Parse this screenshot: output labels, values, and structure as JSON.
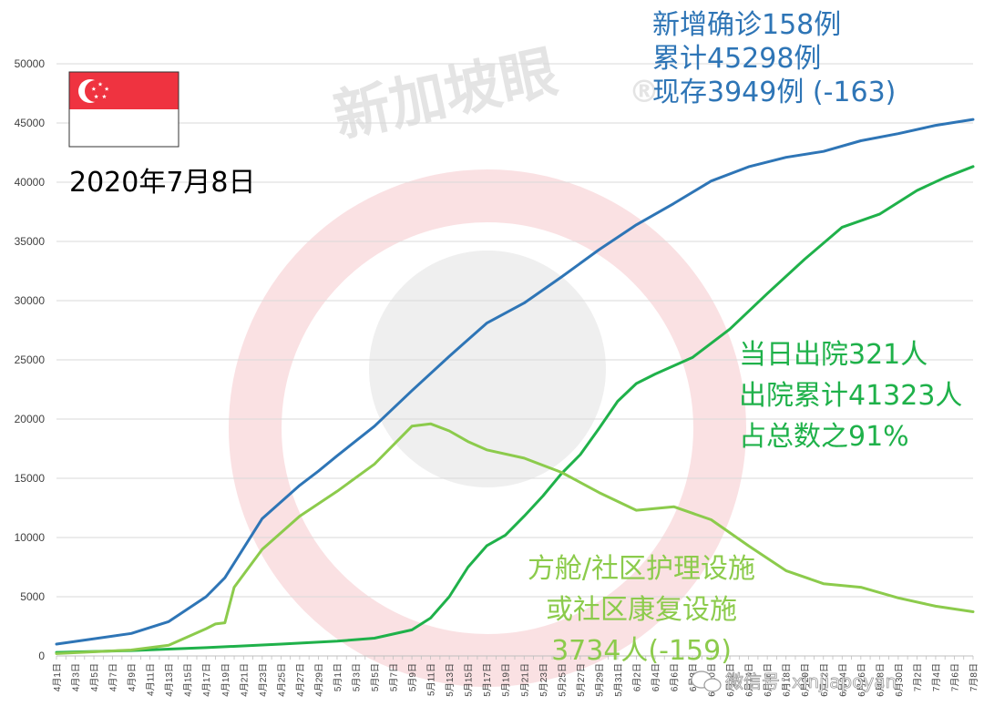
{
  "colors": {
    "confirmed": "#2E75B6",
    "discharged": "#1FB14A",
    "facilities": "#8CCB4C",
    "flag_red": "#EF3340",
    "flag_white": "#FFFFFF",
    "watermark": "#F6C9CC"
  },
  "date_label": "2020年7月8日",
  "annotations": {
    "confirmed": [
      "新增确诊158例",
      "累计45298例",
      "现存3949例 (-163)"
    ],
    "discharged": [
      "当日出院321人",
      "出院累计41323人",
      "占总数之91%"
    ],
    "facilities": [
      "方舱/社区护理设施",
      "或社区康复设施",
      "3734人(-159)"
    ]
  },
  "watermark": {
    "text": "新加坡眼",
    "mark": "®"
  },
  "source_badge": {
    "text": "微信号: xinjiapoyan"
  },
  "chart_data": {
    "type": "line",
    "title": "",
    "xlabel": "",
    "ylabel": "",
    "ylim": [
      0,
      50000
    ],
    "yticks": [
      0,
      5000,
      10000,
      15000,
      20000,
      25000,
      30000,
      35000,
      40000,
      45000,
      50000
    ],
    "x_range": [
      "2020-04-01",
      "2020-07-08"
    ],
    "xtick_labels": [
      "4月1日",
      "4月3日",
      "4月5日",
      "4月7日",
      "4月9日",
      "4月11日",
      "4月13日",
      "4月15日",
      "4月17日",
      "4月19日",
      "4月21日",
      "4月23日",
      "4月25日",
      "4月27日",
      "4月29日",
      "5月1日",
      "5月3日",
      "5月5日",
      "5月7日",
      "5月9日",
      "5月11日",
      "5月13日",
      "5月15日",
      "5月17日",
      "5月19日",
      "5月21日",
      "5月23日",
      "5月25日",
      "5月27日",
      "5月29日",
      "5月31日",
      "6月2日",
      "6月4日",
      "6月6日",
      "6月8日",
      "6月10日",
      "6月12日",
      "6月14日",
      "6月16日",
      "6月18日",
      "6月20日",
      "6月22日",
      "6月24日",
      "6月26日",
      "6月28日",
      "6月30日",
      "7月2日",
      "7月4日",
      "7月6日",
      "7月8日"
    ],
    "grid": true,
    "legend": "none",
    "series": [
      {
        "key": "confirmed",
        "x": [
          "2020-04-01",
          "2020-04-09",
          "2020-04-13",
          "2020-04-17",
          "2020-04-19",
          "2020-04-23",
          "2020-04-27",
          "2020-04-29",
          "2020-05-01",
          "2020-05-05",
          "2020-05-09",
          "2020-05-13",
          "2020-05-17",
          "2020-05-21",
          "2020-05-25",
          "2020-05-29",
          "2020-06-02",
          "2020-06-06",
          "2020-06-10",
          "2020-06-14",
          "2020-06-18",
          "2020-06-22",
          "2020-06-26",
          "2020-06-30",
          "2020-07-04",
          "2020-07-08"
        ],
        "values": [
          1000,
          1900,
          2900,
          5000,
          6600,
          11600,
          14400,
          15600,
          16900,
          19400,
          22400,
          25300,
          28100,
          29800,
          32000,
          34300,
          36400,
          38200,
          40100,
          41300,
          42100,
          42600,
          43500,
          44100,
          44800,
          45298
        ]
      },
      {
        "key": "discharged",
        "x": [
          "2020-04-01",
          "2020-04-09",
          "2020-04-17",
          "2020-04-25",
          "2020-05-01",
          "2020-05-05",
          "2020-05-09",
          "2020-05-11",
          "2020-05-13",
          "2020-05-15",
          "2020-05-17",
          "2020-05-19",
          "2020-05-21",
          "2020-05-23",
          "2020-05-25",
          "2020-05-27",
          "2020-05-29",
          "2020-05-31",
          "2020-06-02",
          "2020-06-04",
          "2020-06-06",
          "2020-06-08",
          "2020-06-12",
          "2020-06-16",
          "2020-06-20",
          "2020-06-24",
          "2020-06-28",
          "2020-07-02",
          "2020-07-05",
          "2020-07-08"
        ],
        "values": [
          300,
          450,
          700,
          1000,
          1250,
          1500,
          2200,
          3200,
          5000,
          7500,
          9300,
          10200,
          11800,
          13500,
          15400,
          17000,
          19200,
          21500,
          23000,
          23800,
          24500,
          25200,
          27600,
          30600,
          33500,
          36200,
          37300,
          39300,
          40400,
          41323
        ]
      },
      {
        "key": "facilities",
        "x": [
          "2020-04-01",
          "2020-04-09",
          "2020-04-13",
          "2020-04-17",
          "2020-04-18",
          "2020-04-19",
          "2020-04-20",
          "2020-04-23",
          "2020-04-27",
          "2020-05-01",
          "2020-05-05",
          "2020-05-09",
          "2020-05-11",
          "2020-05-13",
          "2020-05-15",
          "2020-05-17",
          "2020-05-21",
          "2020-05-25",
          "2020-05-29",
          "2020-06-02",
          "2020-06-06",
          "2020-06-10",
          "2020-06-14",
          "2020-06-18",
          "2020-06-22",
          "2020-06-26",
          "2020-06-30",
          "2020-07-04",
          "2020-07-08"
        ],
        "values": [
          200,
          500,
          900,
          2300,
          2700,
          2800,
          5800,
          9000,
          11800,
          13900,
          16200,
          19400,
          19600,
          19000,
          18100,
          17400,
          16700,
          15500,
          13800,
          12300,
          12600,
          11500,
          9300,
          7200,
          6100,
          5800,
          4900,
          4200,
          3734
        ]
      }
    ]
  }
}
